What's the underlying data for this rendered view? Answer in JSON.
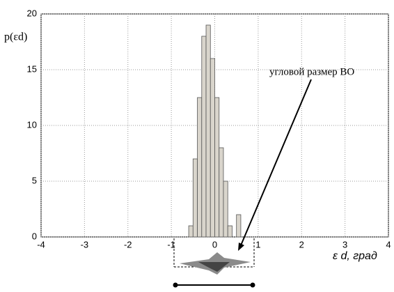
{
  "chart_data": {
    "type": "histogram",
    "ylabel": "p(εd)",
    "xlabel": "ε d, град",
    "annotation": "угловой размер ВО",
    "bins": [
      -0.6,
      -0.5,
      -0.4,
      -0.3,
      -0.2,
      -0.1,
      0,
      0.1,
      0.2,
      0.3,
      0.4,
      0.5,
      0.6
    ],
    "counts": [
      1,
      7,
      12.5,
      18,
      19,
      16,
      12.5,
      8,
      5,
      1,
      0,
      2
    ],
    "color": "#d9d5cc",
    "xlim": [
      -4,
      4
    ],
    "xticks": [
      -4,
      -3,
      -2,
      -1,
      0,
      1,
      2,
      3,
      4
    ],
    "ylim": [
      0,
      20
    ],
    "yticks": [
      0,
      5,
      10,
      15,
      20
    ],
    "grid": true
  }
}
